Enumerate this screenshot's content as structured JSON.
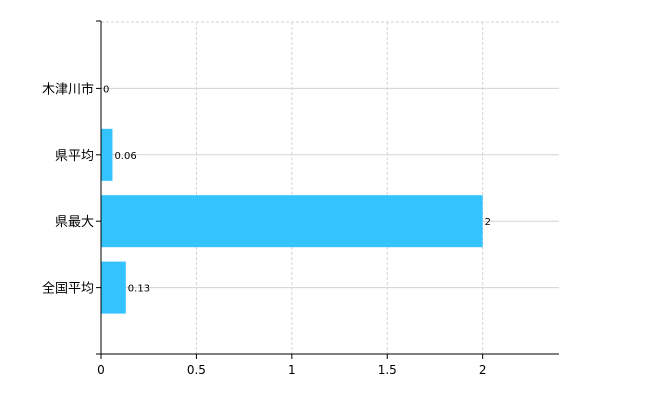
{
  "chart_data": {
    "type": "bar",
    "orientation": "horizontal",
    "categories": [
      "木津川市",
      "県平均",
      "県最大",
      "全国平均"
    ],
    "values": [
      0,
      0.06,
      2,
      0.13
    ],
    "data_labels": [
      "0",
      "0.06",
      "2",
      "0.13"
    ],
    "title": "",
    "xlabel": "",
    "ylabel": "",
    "xlim": [
      0,
      2.4
    ],
    "xticks": [
      0,
      0.5,
      1,
      1.5,
      2
    ],
    "xtick_labels": [
      "0",
      "0.5",
      "1",
      "1.5",
      "2"
    ],
    "grid": true,
    "legend": "none",
    "colors": {
      "bar": "#33c3ff",
      "grid": "#d3d3d3",
      "axis": "#000000"
    }
  }
}
